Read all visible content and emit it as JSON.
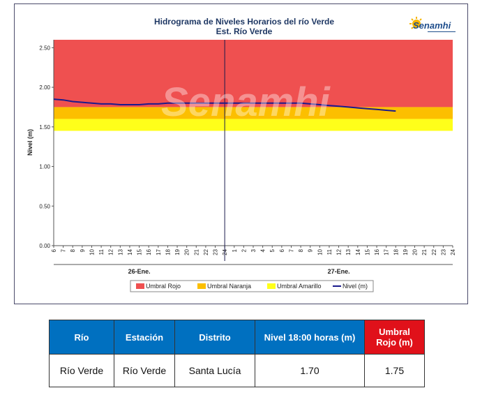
{
  "chart": {
    "title_line1": "Hidrograma de Niveles Horarios del río Verde",
    "title_line2": "Est. Río Verde",
    "logo_text": "Senamhi",
    "watermark_text": "Senamhi"
  },
  "chart_data": {
    "type": "line",
    "title": "Hidrograma de Niveles Horarios del río Verde",
    "subtitle": "Est. Río Verde",
    "ylabel": "Nivel (m)",
    "ylim": [
      0,
      2.6
    ],
    "yticks": [
      "0.00",
      "0.50",
      "1.00",
      "1.50",
      "2.00",
      "2.50"
    ],
    "xtick_labels": [
      "6",
      "7",
      "8",
      "9",
      "10",
      "11",
      "12",
      "13",
      "14",
      "15",
      "16",
      "17",
      "18",
      "19",
      "20",
      "21",
      "22",
      "23",
      "24",
      "1",
      "2",
      "3",
      "4",
      "5",
      "6",
      "7",
      "8",
      "9",
      "10",
      "11",
      "12",
      "13",
      "14",
      "15",
      "16",
      "17",
      "18",
      "19",
      "20",
      "21",
      "22",
      "23",
      "24"
    ],
    "day_labels": [
      "26-Ene.",
      "27-Ene."
    ],
    "grid": false,
    "legend_position": "bottom",
    "threshold_bands": [
      {
        "name": "Umbral Rojo",
        "from": 1.75,
        "to": 2.6,
        "color": "#ef5050"
      },
      {
        "name": "Umbral Naranja",
        "from": 1.6,
        "to": 1.75,
        "color": "#fcbf00"
      },
      {
        "name": "Umbral Amarillo",
        "from": 1.45,
        "to": 1.6,
        "color": "#ffff1a"
      }
    ],
    "series": [
      {
        "name": "Nivel (m)",
        "color": "#1a1a8c",
        "x_index": [
          0,
          1,
          2,
          3,
          4,
          5,
          6,
          7,
          8,
          9,
          10,
          11,
          12,
          13,
          14,
          15,
          16,
          17,
          18,
          19,
          20,
          21,
          22,
          23,
          24,
          25,
          26,
          27,
          28,
          29,
          30,
          31,
          32,
          33,
          34,
          35,
          36
        ],
        "values": [
          1.85,
          1.84,
          1.82,
          1.81,
          1.8,
          1.79,
          1.79,
          1.78,
          1.78,
          1.78,
          1.79,
          1.79,
          1.8,
          1.8,
          1.8,
          1.8,
          1.8,
          1.8,
          1.8,
          1.8,
          1.8,
          1.8,
          1.8,
          1.8,
          1.8,
          1.8,
          1.8,
          1.79,
          1.78,
          1.77,
          1.76,
          1.75,
          1.74,
          1.73,
          1.72,
          1.71,
          1.7
        ]
      }
    ]
  },
  "table": {
    "headers": {
      "rio": "Río",
      "estacion": "Estación",
      "distrito": "Distrito",
      "nivel": "Nivel  18:00 horas (m)",
      "umbral": "Umbral Rojo (m)"
    },
    "row": {
      "rio": "Río Verde",
      "estacion": "Río Verde",
      "distrito": "Santa Lucía",
      "nivel": "1.70",
      "umbral": "1.75"
    }
  }
}
